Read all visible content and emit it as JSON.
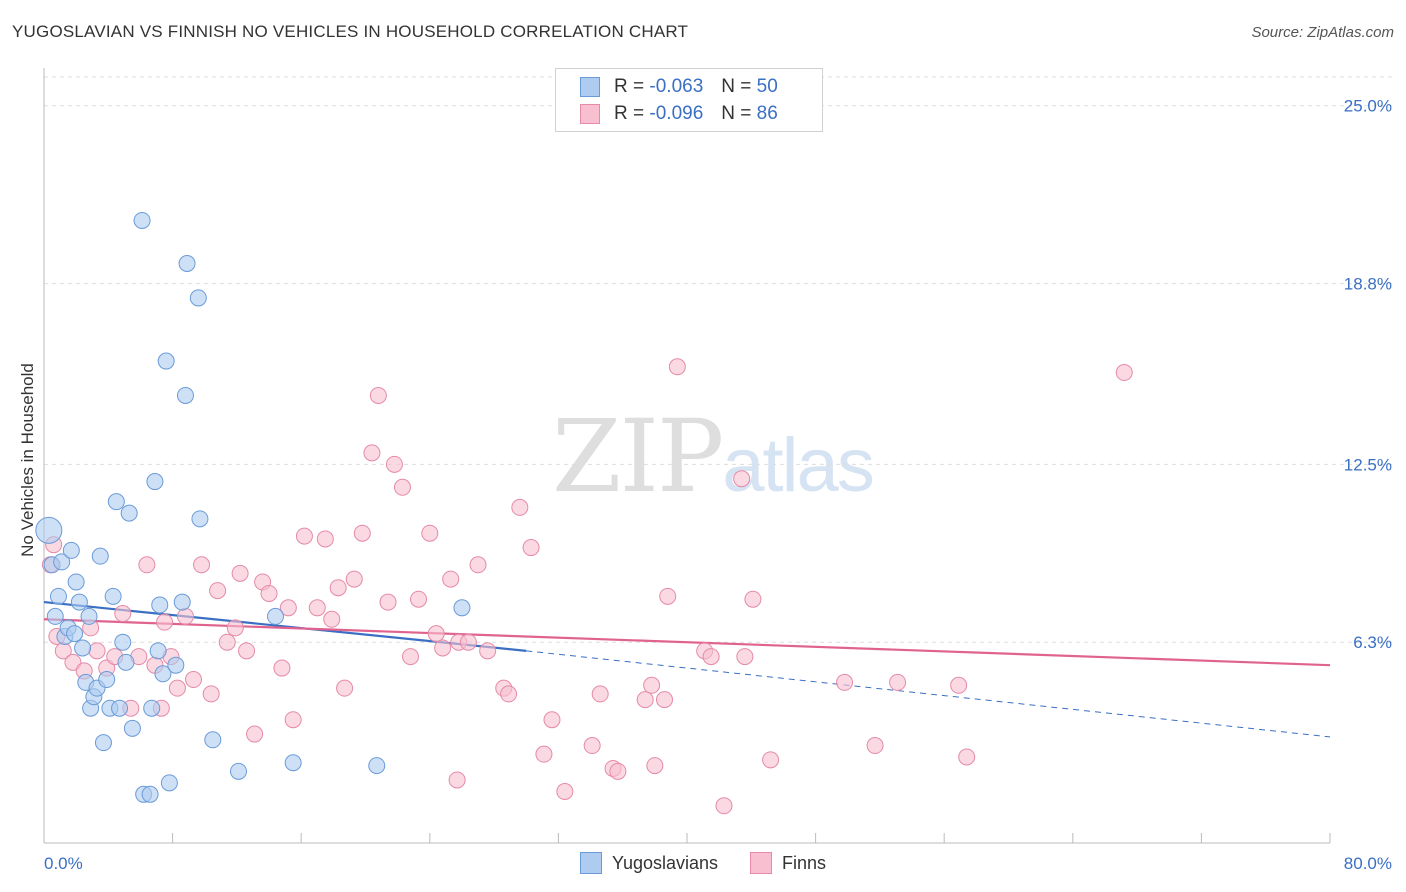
{
  "title": "YUGOSLAVIAN VS FINNISH NO VEHICLES IN HOUSEHOLD CORRELATION CHART",
  "source": "Source: ZipAtlas.com",
  "watermark": {
    "zip": "ZIP",
    "atlas": "atlas"
  },
  "legend": {
    "rows": [
      {
        "r_label": "R =",
        "r_value": "-0.063",
        "n_label": "N =",
        "n_value": "50"
      },
      {
        "r_label": "R =",
        "r_value": "-0.096",
        "n_label": "N =",
        "n_value": "86"
      }
    ]
  },
  "bottom_legend": [
    "Yugoslavians",
    "Finns"
  ],
  "colors": {
    "blue_fill": "#aecbf0",
    "blue_stroke": "#6a9bd8",
    "blue_line": "#3a6fc4",
    "pink_fill": "#f7bfd0",
    "pink_stroke": "#e58aa8",
    "pink_line": "#e0628f",
    "axis_text": "#3a6fc4",
    "grid": "#dddddd"
  },
  "chart_data": {
    "type": "scatter",
    "title": "YUGOSLAVIAN VS FINNISH NO VEHICLES IN HOUSEHOLD CORRELATION CHART",
    "xlabel": "",
    "ylabel": "No Vehicles in Household",
    "xlim": [
      0,
      80
    ],
    "ylim": [
      0,
      26
    ],
    "x_tick_labels": [
      "0.0%",
      "80.0%"
    ],
    "y_ticks": [
      6.3,
      12.5,
      18.8,
      25.0
    ],
    "y_tick_labels": [
      "6.3%",
      "12.5%",
      "18.8%",
      "25.0%"
    ],
    "series": [
      {
        "name": "Yugoslavians",
        "R": -0.063,
        "N": 50,
        "trend": {
          "x0": 0,
          "y0": 7.7,
          "x1": 30,
          "y1": 6.0,
          "dashed_to_x": 80,
          "dashed_to_y": 3.0
        },
        "points": [
          [
            0.3,
            10.2
          ],
          [
            0.5,
            9.0
          ],
          [
            0.7,
            7.2
          ],
          [
            0.9,
            7.9
          ],
          [
            1.1,
            9.1
          ],
          [
            1.3,
            6.5
          ],
          [
            1.5,
            6.8
          ],
          [
            1.7,
            9.5
          ],
          [
            1.9,
            6.6
          ],
          [
            2.0,
            8.4
          ],
          [
            2.2,
            7.7
          ],
          [
            2.4,
            6.1
          ],
          [
            2.6,
            4.9
          ],
          [
            2.8,
            7.2
          ],
          [
            2.9,
            4.0
          ],
          [
            3.1,
            4.4
          ],
          [
            3.3,
            4.7
          ],
          [
            3.5,
            9.3
          ],
          [
            3.7,
            2.8
          ],
          [
            3.9,
            5.0
          ],
          [
            4.1,
            4.0
          ],
          [
            4.3,
            7.9
          ],
          [
            4.5,
            11.2
          ],
          [
            4.7,
            4.0
          ],
          [
            4.9,
            6.3
          ],
          [
            5.1,
            5.6
          ],
          [
            5.3,
            10.8
          ],
          [
            5.5,
            3.3
          ],
          [
            6.1,
            21.0
          ],
          [
            6.2,
            1.0
          ],
          [
            6.6,
            1.0
          ],
          [
            6.7,
            4.0
          ],
          [
            6.9,
            11.9
          ],
          [
            7.1,
            6.0
          ],
          [
            7.2,
            7.6
          ],
          [
            7.4,
            5.2
          ],
          [
            7.6,
            16.1
          ],
          [
            7.8,
            1.4
          ],
          [
            8.2,
            5.5
          ],
          [
            8.6,
            7.7
          ],
          [
            8.8,
            14.9
          ],
          [
            8.9,
            19.5
          ],
          [
            9.6,
            18.3
          ],
          [
            9.7,
            10.6
          ],
          [
            10.5,
            2.9
          ],
          [
            12.1,
            1.8
          ],
          [
            14.4,
            7.2
          ],
          [
            15.5,
            2.1
          ],
          [
            20.7,
            2.0
          ],
          [
            26.0,
            7.5
          ]
        ]
      },
      {
        "name": "Finns",
        "R": -0.096,
        "N": 86,
        "trend": {
          "x0": 0,
          "y0": 7.1,
          "x1": 80,
          "y1": 5.5
        },
        "points": [
          [
            0.4,
            9.0
          ],
          [
            0.6,
            9.7
          ],
          [
            0.8,
            6.5
          ],
          [
            1.2,
            6.0
          ],
          [
            1.8,
            5.6
          ],
          [
            2.5,
            5.3
          ],
          [
            2.9,
            6.8
          ],
          [
            3.3,
            6.0
          ],
          [
            3.9,
            5.4
          ],
          [
            4.4,
            5.8
          ],
          [
            4.9,
            7.3
          ],
          [
            5.4,
            4.0
          ],
          [
            5.9,
            5.8
          ],
          [
            6.4,
            9.0
          ],
          [
            6.9,
            5.5
          ],
          [
            7.3,
            4.0
          ],
          [
            7.5,
            7.0
          ],
          [
            7.9,
            5.8
          ],
          [
            8.3,
            4.7
          ],
          [
            8.8,
            7.2
          ],
          [
            9.3,
            5.0
          ],
          [
            9.8,
            9.0
          ],
          [
            10.4,
            4.5
          ],
          [
            10.8,
            8.1
          ],
          [
            11.4,
            6.3
          ],
          [
            11.9,
            6.8
          ],
          [
            12.2,
            8.7
          ],
          [
            12.6,
            6.0
          ],
          [
            13.1,
            3.1
          ],
          [
            13.6,
            8.4
          ],
          [
            14.0,
            8.0
          ],
          [
            14.8,
            5.4
          ],
          [
            15.2,
            7.5
          ],
          [
            15.5,
            3.6
          ],
          [
            16.2,
            10.0
          ],
          [
            17.0,
            7.5
          ],
          [
            17.5,
            9.9
          ],
          [
            17.9,
            7.1
          ],
          [
            18.3,
            8.2
          ],
          [
            18.7,
            4.7
          ],
          [
            19.3,
            8.5
          ],
          [
            19.8,
            10.1
          ],
          [
            20.4,
            12.9
          ],
          [
            20.8,
            14.9
          ],
          [
            21.4,
            7.7
          ],
          [
            21.8,
            12.5
          ],
          [
            22.3,
            11.7
          ],
          [
            22.8,
            5.8
          ],
          [
            23.3,
            7.8
          ],
          [
            24.0,
            10.1
          ],
          [
            24.4,
            6.6
          ],
          [
            24.8,
            6.1
          ],
          [
            25.3,
            8.5
          ],
          [
            25.7,
            1.5
          ],
          [
            25.8,
            6.3
          ],
          [
            26.4,
            6.3
          ],
          [
            27.0,
            9.0
          ],
          [
            27.6,
            6.0
          ],
          [
            28.6,
            4.7
          ],
          [
            28.9,
            4.5
          ],
          [
            29.6,
            11.0
          ],
          [
            30.3,
            9.6
          ],
          [
            31.1,
            2.4
          ],
          [
            31.6,
            3.6
          ],
          [
            32.4,
            1.1
          ],
          [
            34.1,
            2.7
          ],
          [
            34.6,
            4.5
          ],
          [
            35.4,
            1.9
          ],
          [
            35.7,
            1.8
          ],
          [
            37.4,
            4.3
          ],
          [
            37.8,
            4.8
          ],
          [
            38.0,
            2.0
          ],
          [
            38.6,
            4.3
          ],
          [
            38.8,
            7.9
          ],
          [
            39.4,
            15.9
          ],
          [
            41.1,
            6.0
          ],
          [
            41.5,
            5.8
          ],
          [
            42.3,
            0.6
          ],
          [
            43.4,
            12.0
          ],
          [
            43.6,
            5.8
          ],
          [
            44.1,
            7.8
          ],
          [
            45.2,
            2.2
          ],
          [
            49.8,
            4.9
          ],
          [
            51.7,
            2.7
          ],
          [
            53.1,
            4.9
          ],
          [
            56.9,
            4.8
          ],
          [
            57.4,
            2.3
          ],
          [
            67.2,
            15.7
          ]
        ]
      }
    ]
  }
}
